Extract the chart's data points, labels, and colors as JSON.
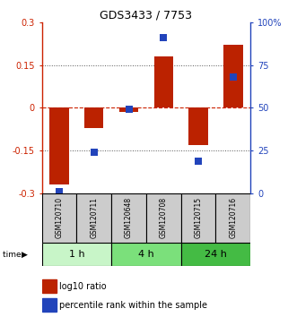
{
  "title": "GDS3433 / 7753",
  "samples": [
    "GSM120710",
    "GSM120711",
    "GSM120648",
    "GSM120708",
    "GSM120715",
    "GSM120716"
  ],
  "log10_ratio": [
    -0.27,
    -0.07,
    -0.015,
    0.18,
    -0.13,
    0.22
  ],
  "percentile_rank": [
    1,
    24,
    49,
    91,
    19,
    68
  ],
  "groups": [
    {
      "label": "1 h",
      "span": [
        0,
        2
      ],
      "color": "#c8f5c8"
    },
    {
      "label": "4 h",
      "span": [
        2,
        4
      ],
      "color": "#7be07b"
    },
    {
      "label": "24 h",
      "span": [
        4,
        6
      ],
      "color": "#44bb44"
    }
  ],
  "ylim_left": [
    -0.3,
    0.3
  ],
  "ylim_right": [
    0,
    100
  ],
  "left_ticks": [
    -0.3,
    -0.15,
    0,
    0.15,
    0.3
  ],
  "right_ticks": [
    0,
    25,
    50,
    75,
    100
  ],
  "left_tick_labels": [
    "-0.3",
    "-0.15",
    "0",
    "0.15",
    "0.3"
  ],
  "right_tick_labels": [
    "0",
    "25",
    "50",
    "75",
    "100%"
  ],
  "bar_color": "#bb2200",
  "dot_color": "#2244bb",
  "hline_color": "#cc2200",
  "dotted_color": "#555555",
  "background_color": "#ffffff",
  "sample_box_color": "#cccccc",
  "bar_width": 0.55,
  "dot_size": 28,
  "title_fontsize": 9,
  "tick_fontsize": 7,
  "sample_fontsize": 5.5,
  "group_fontsize": 8,
  "legend_fontsize": 7
}
